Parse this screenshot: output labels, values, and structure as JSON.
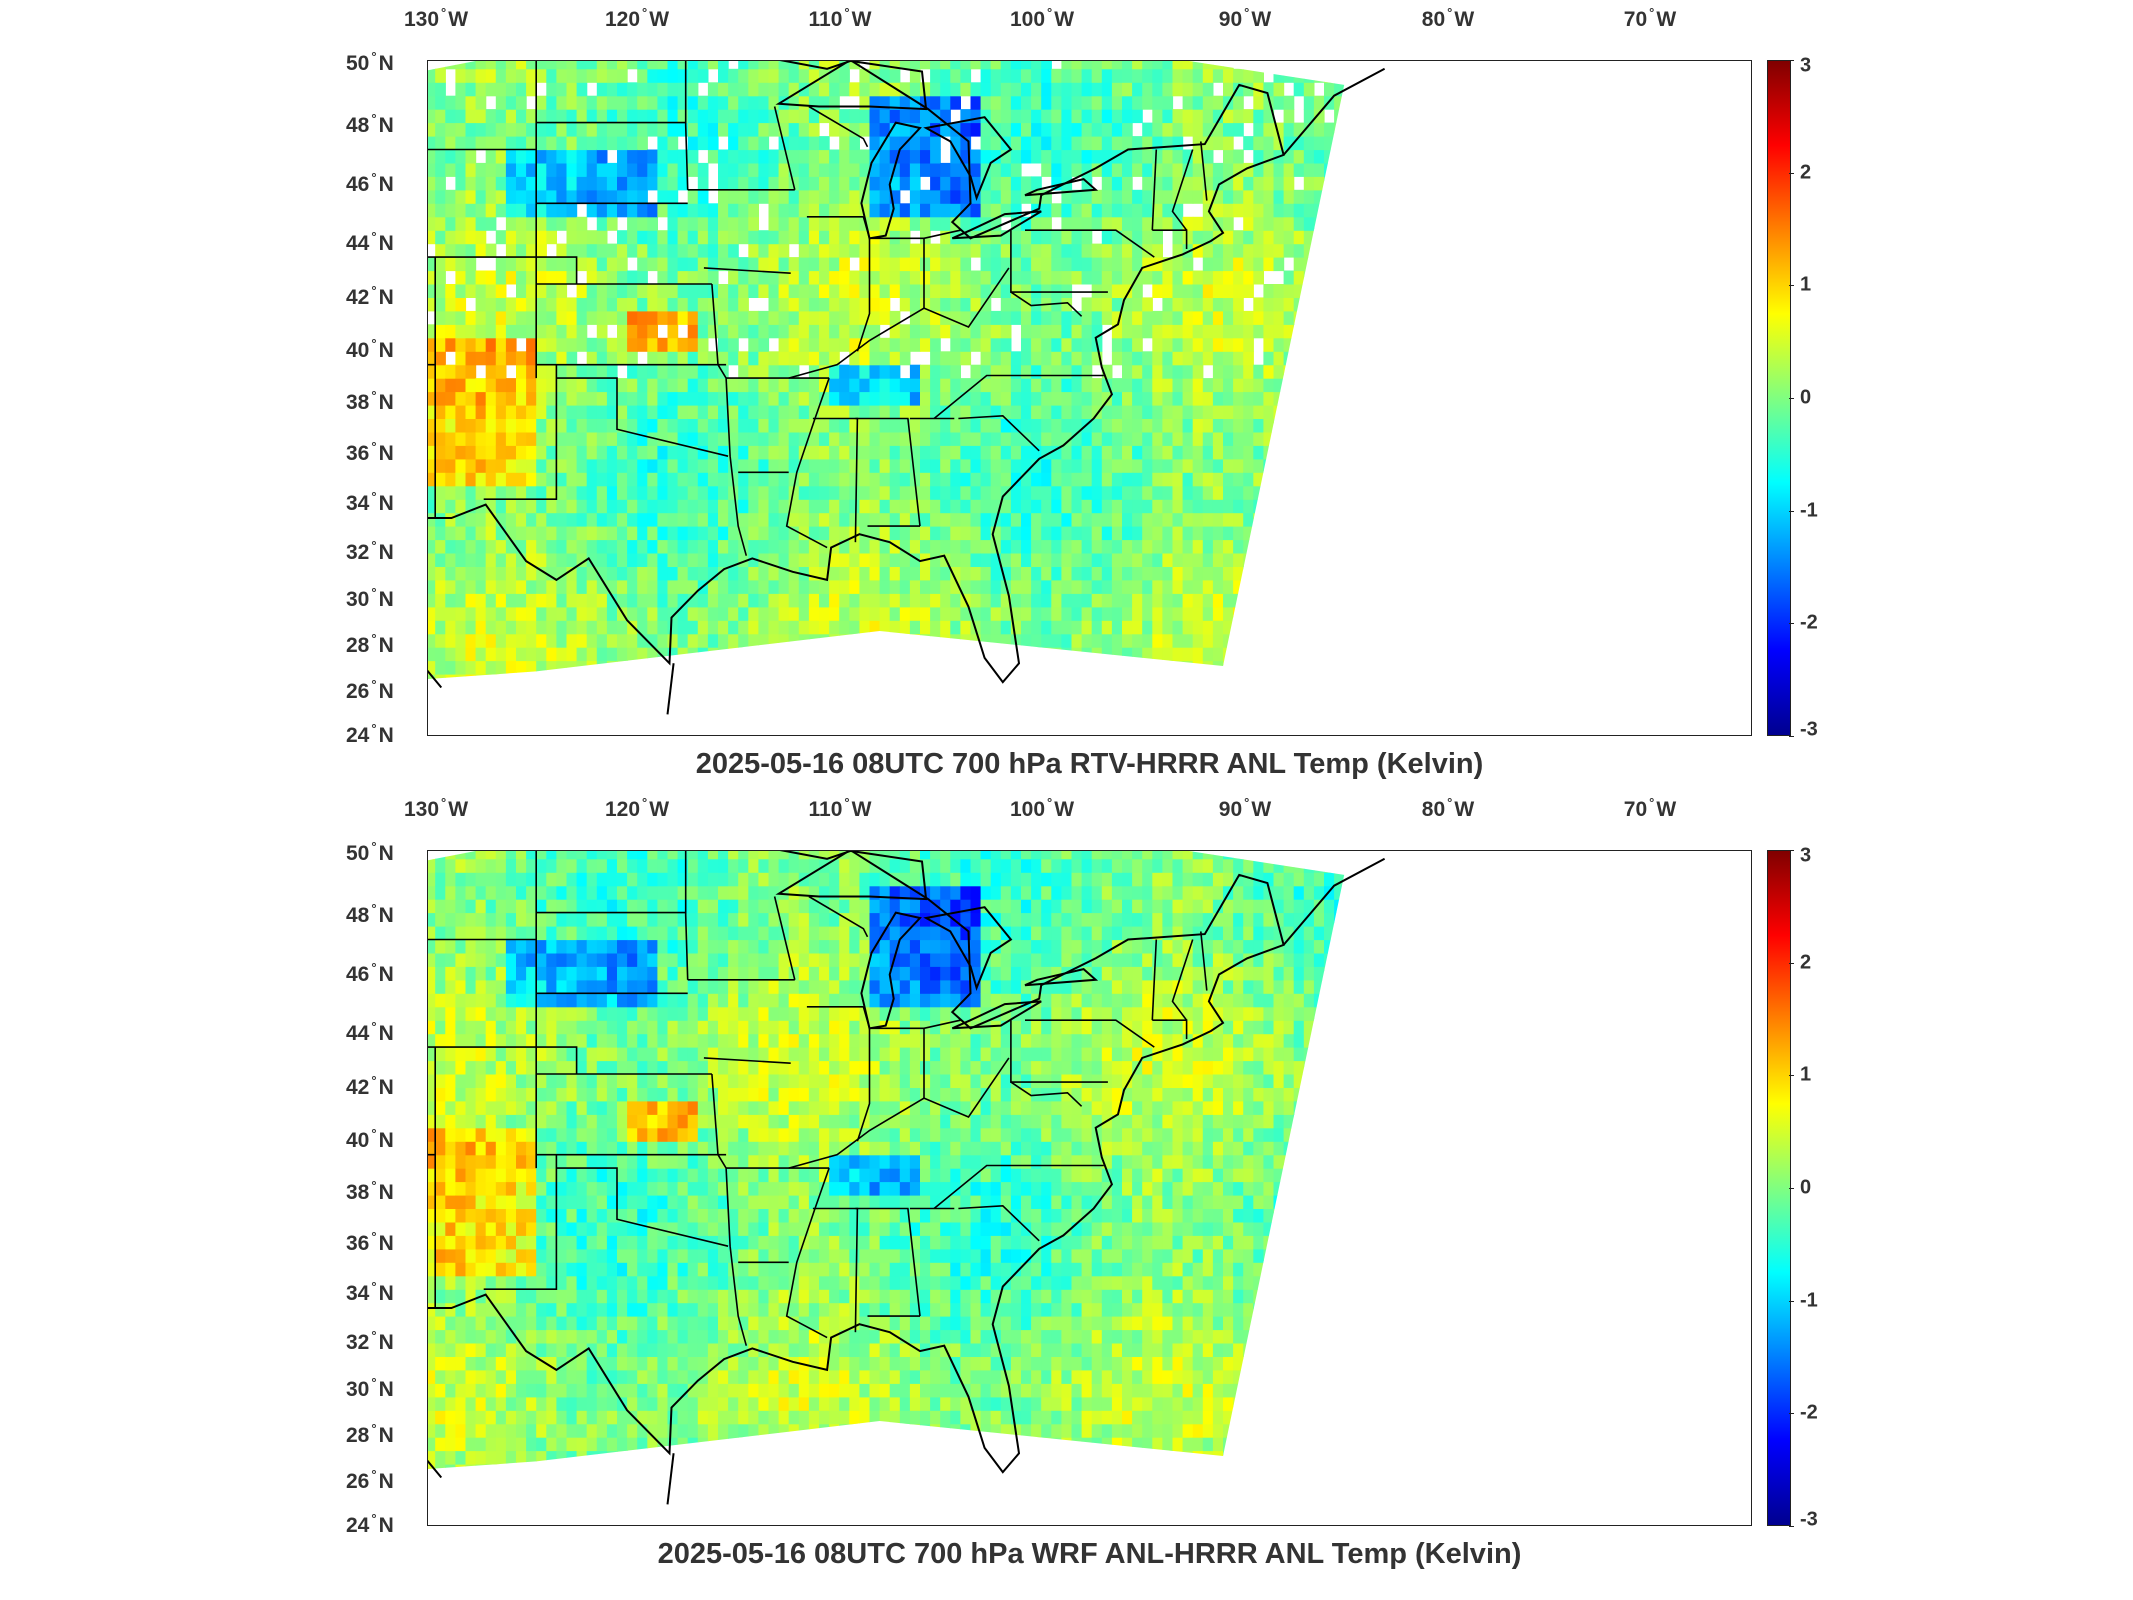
{
  "lon_labels": [
    {
      "deg": "130",
      "dir": "W"
    },
    {
      "deg": "120",
      "dir": "W"
    },
    {
      "deg": "110",
      "dir": "W"
    },
    {
      "deg": "100",
      "dir": "W"
    },
    {
      "deg": "90",
      "dir": "W"
    },
    {
      "deg": "80",
      "dir": "W"
    },
    {
      "deg": "70",
      "dir": "W"
    }
  ],
  "lat_labels": [
    {
      "deg": "50",
      "dir": "N"
    },
    {
      "deg": "48",
      "dir": "N"
    },
    {
      "deg": "46",
      "dir": "N"
    },
    {
      "deg": "44",
      "dir": "N"
    },
    {
      "deg": "42",
      "dir": "N"
    },
    {
      "deg": "40",
      "dir": "N"
    },
    {
      "deg": "38",
      "dir": "N"
    },
    {
      "deg": "36",
      "dir": "N"
    },
    {
      "deg": "34",
      "dir": "N"
    },
    {
      "deg": "32",
      "dir": "N"
    },
    {
      "deg": "30",
      "dir": "N"
    },
    {
      "deg": "28",
      "dir": "N"
    },
    {
      "deg": "26",
      "dir": "N"
    },
    {
      "deg": "24",
      "dir": "N"
    }
  ],
  "colorbar": {
    "ticks": [
      "3",
      "2",
      "1",
      "0",
      "-1",
      "-2",
      "-3"
    ],
    "range": [
      -3,
      3
    ],
    "colors": [
      "#00008f",
      "#0000ff",
      "#0080ff",
      "#00ffff",
      "#80ff80",
      "#ffff00",
      "#ff8000",
      "#ff0000",
      "#800000"
    ]
  },
  "panels": {
    "top": {
      "title": "2025-05-16 08UTC 700 hPa RTV-HRRR ANL Temp (Kelvin)"
    },
    "bottom": {
      "title": "2025-05-16 08UTC 700 hPa WRF ANL-HRRR ANL Temp (Kelvin)"
    }
  }
}
